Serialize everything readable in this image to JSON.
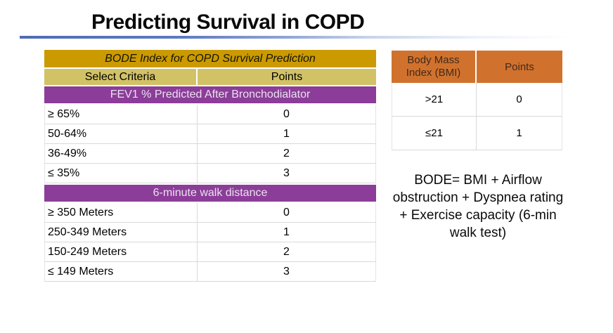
{
  "slide": {
    "title": "Predicting Survival in COPD"
  },
  "bode_table": {
    "header": "BODE Index for COPD Survival Prediction",
    "columns": {
      "criteria": "Select Criteria",
      "points": "Points"
    },
    "sections": [
      {
        "label": "FEV1 % Predicted After Bronchodialator",
        "rows": [
          {
            "criteria": "≥ 65%",
            "points": "0"
          },
          {
            "criteria": "50-64%",
            "points": "1"
          },
          {
            "criteria": "36-49%",
            "points": "2"
          },
          {
            "criteria": "≤ 35%",
            "points": "3"
          }
        ]
      },
      {
        "label": "6-minute walk distance",
        "rows": [
          {
            "criteria": "≥ 350 Meters",
            "points": "0"
          },
          {
            "criteria": "250-349 Meters",
            "points": "1"
          },
          {
            "criteria": "150-249 Meters",
            "points": "2"
          },
          {
            "criteria": "≤ 149 Meters",
            "points": "3"
          }
        ]
      }
    ]
  },
  "bmi_table": {
    "columns": {
      "bmi": "Body Mass Index (BMI)",
      "points": "Points"
    },
    "rows": [
      {
        "bmi": ">21",
        "points": "0"
      },
      {
        "bmi": "≤21",
        "points": "1"
      }
    ]
  },
  "formula": "BODE= BMI + Airflow obstruction + Dyspnea rating + Exercise capacity (6-min walk test)",
  "colors": {
    "gold_header": "#cb9a01",
    "khaki_subheader": "#d2c266",
    "purple_section": "#8c3d99",
    "orange_header": "#d0722e",
    "orange_header_text": "#42291a",
    "title_rule_blue": "#5f7ac2",
    "row_border": "#d9d9d9"
  }
}
